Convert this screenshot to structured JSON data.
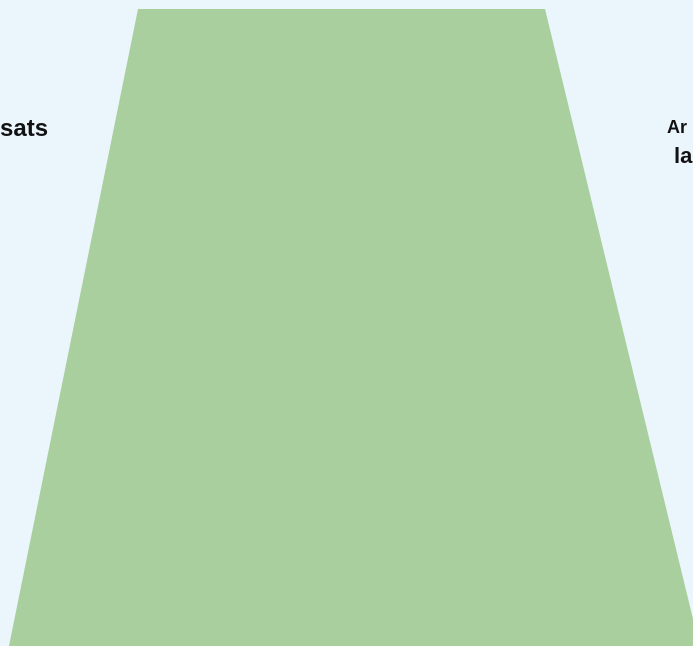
{
  "colors": {
    "background": "#EBF5FC",
    "funnel_fill": "#A8CF9D",
    "text": "#111111"
  },
  "chart_data": {
    "type": "funnel",
    "stages": [
      {
        "label": "sats",
        "fill": "#A8CF9D"
      }
    ],
    "side_labels": {
      "left": "sats",
      "right_line1": "Ar",
      "right_line2": "la"
    }
  }
}
